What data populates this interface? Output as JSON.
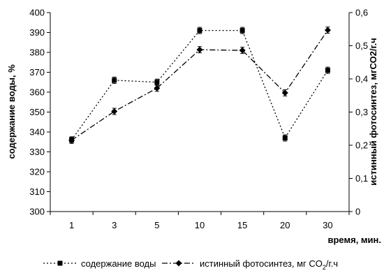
{
  "chart_data": {
    "type": "line",
    "title": "",
    "xlabel": "время, мин.",
    "ylabel_left": "содержание воды, %",
    "ylabel_right": "истинный фотосинтез, мгСО2/г.ч",
    "categories": [
      "1",
      "3",
      "5",
      "10",
      "15",
      "20",
      "30"
    ],
    "ylim_left": [
      300,
      400
    ],
    "yticks_left": [
      "300",
      "310",
      "320",
      "330",
      "340",
      "350",
      "360",
      "370",
      "380",
      "390",
      "400"
    ],
    "ylim_right": [
      0,
      0.6
    ],
    "yticks_right": [
      "0",
      "0,1",
      "0,2",
      "0,3",
      "0,4",
      "0,5",
      "0,6"
    ],
    "grid": false,
    "legend_position": "bottom",
    "series": [
      {
        "name": "содержание воды",
        "axis": "left",
        "marker": "square",
        "line_style": "dotted",
        "values": [
          336,
          366,
          365,
          391,
          391,
          337,
          371
        ]
      },
      {
        "name": "истинный фотосинтез, мг CO2/г.ч",
        "axis": "right",
        "marker": "diamond",
        "line_style": "dash-dot",
        "values": [
          0.215,
          0.302,
          0.372,
          0.488,
          0.486,
          0.358,
          0.547
        ]
      }
    ],
    "legend": {
      "item1": "содержание воды",
      "item2_prefix": "истинный фотосинтез, мг CO",
      "item2_sub": "2",
      "item2_suffix": "/г.ч"
    },
    "colors": {
      "line": "#000000",
      "axis": "#000000",
      "background": "#ffffff"
    }
  }
}
